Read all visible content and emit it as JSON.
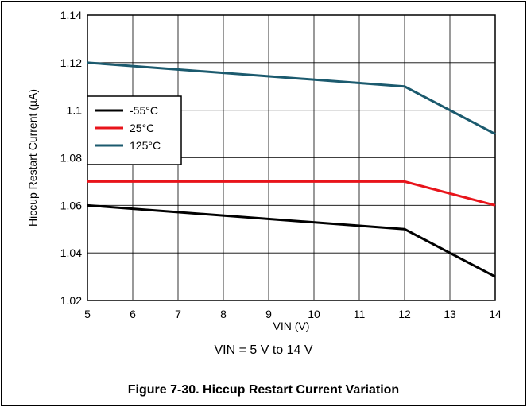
{
  "chart_data": {
    "type": "line",
    "xlabel": "VIN (V)",
    "ylabel": "Hiccup Restart Current (µA)",
    "xlim": [
      5,
      14
    ],
    "ylim": [
      1.02,
      1.14
    ],
    "xticks": [
      "5",
      "6",
      "7",
      "8",
      "9",
      "10",
      "11",
      "12",
      "13",
      "14"
    ],
    "yticks": [
      "1.02",
      "1.04",
      "1.06",
      "1.08",
      "1.1",
      "1.12",
      "1.14"
    ],
    "grid": true,
    "legend_position": "middle-left",
    "series": [
      {
        "name": "-55°C",
        "color": "#000000",
        "x": [
          5,
          12,
          14
        ],
        "y": [
          1.06,
          1.05,
          1.03
        ]
      },
      {
        "name": "25°C",
        "color": "#e8141b",
        "x": [
          5,
          12,
          14
        ],
        "y": [
          1.07,
          1.07,
          1.06
        ]
      },
      {
        "name": "125°C",
        "color": "#1b5a6e",
        "x": [
          5,
          12,
          14
        ],
        "y": [
          1.12,
          1.11,
          1.09
        ]
      }
    ]
  },
  "condition": "VIN = 5 V to 14 V",
  "caption": "Figure 7-30. Hiccup Restart Current Variation"
}
